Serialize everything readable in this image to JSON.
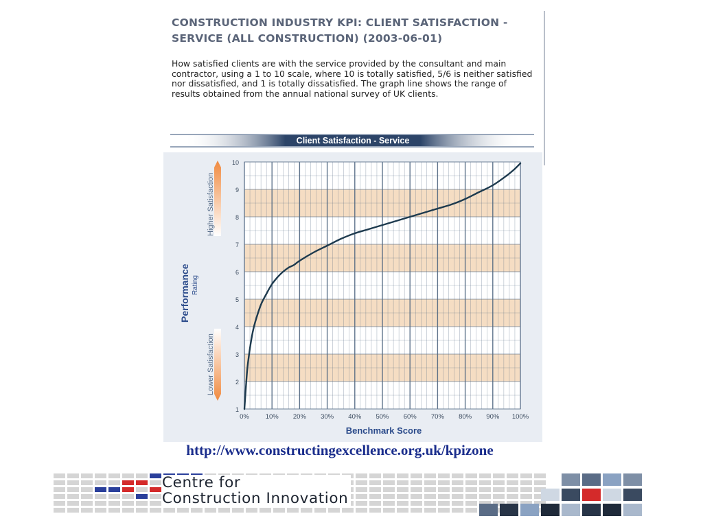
{
  "kpi": {
    "title": "CONSTRUCTION INDUSTRY KPI: CLIENT SATISFACTION - SERVICE (ALL CONSTRUCTION) (2003-06-01)",
    "description": "How satisfied clients are with the service provided by the consultant and main contractor, using a 1 to 10 scale, where 10 is totally satisfied, 5/6 is neither satisfied nor dissatisfied, and 1 is totally dissatisfied. The graph line shows the range of results obtained from the annual national survey of UK clients."
  },
  "chart_data": {
    "type": "line",
    "title": "Client Satisfaction - Service",
    "xlabel": "Benchmark Score",
    "ylabel": "Performance",
    "ylabel_sub": "Rating",
    "band_upper_label": "Higher Satisfaction",
    "band_lower_label": "Lower Satisfaction",
    "x_ticks": [
      "0%",
      "10%",
      "20%",
      "30%",
      "40%",
      "50%",
      "60%",
      "70%",
      "80%",
      "90%",
      "100%"
    ],
    "y_ticks": [
      "1",
      "2",
      "3",
      "4",
      "5",
      "6",
      "7",
      "8",
      "9",
      "10"
    ],
    "xlim": [
      0,
      100
    ],
    "ylim": [
      1,
      10
    ],
    "grid": true,
    "series": [
      {
        "x": [
          0,
          1,
          2,
          3,
          4,
          6,
          8,
          10,
          12,
          14,
          16,
          18,
          20,
          25,
          30,
          35,
          40,
          45,
          50,
          55,
          60,
          65,
          70,
          75,
          80,
          85,
          90,
          95,
          98,
          100
        ],
        "values": [
          1.0,
          2.4,
          3.2,
          3.8,
          4.2,
          4.8,
          5.2,
          5.55,
          5.8,
          6.0,
          6.15,
          6.25,
          6.4,
          6.7,
          6.95,
          7.2,
          7.4,
          7.55,
          7.7,
          7.85,
          8.0,
          8.15,
          8.3,
          8.45,
          8.65,
          8.9,
          9.15,
          9.5,
          9.75,
          9.95
        ]
      }
    ],
    "colors": {
      "line": "#1d3a4e",
      "band": "#f5ddc3",
      "grid": "#4e6580",
      "title_bar": "#2c4468",
      "axis_label": "#2a4a8a"
    }
  },
  "source": {
    "url": "http://www.constructingexcellence.org.uk/kpizone"
  },
  "footer": {
    "org_line1": "Centre for",
    "org_line2": "Construction Innovation"
  }
}
